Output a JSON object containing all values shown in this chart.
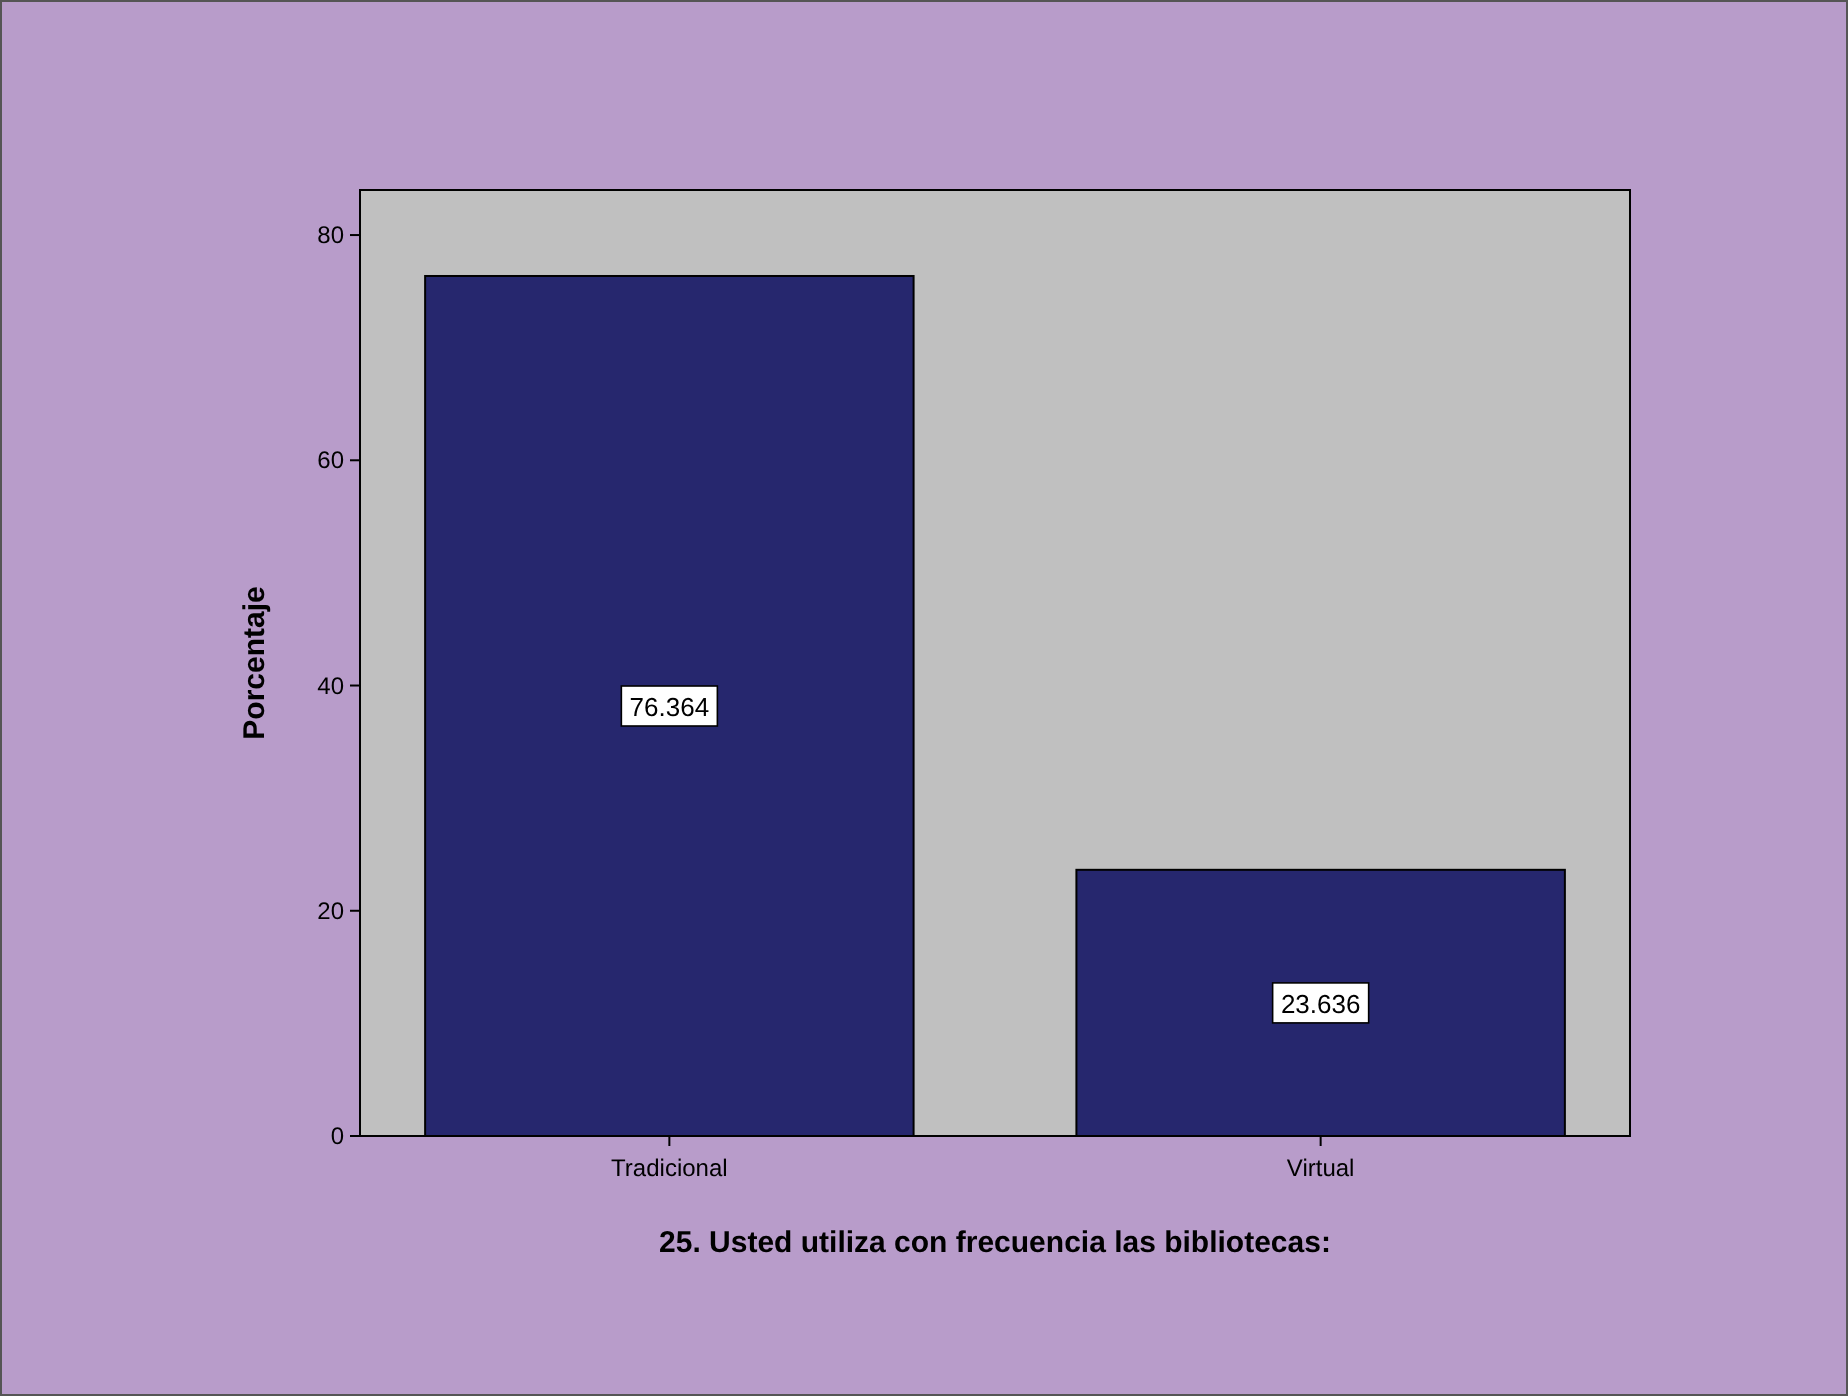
{
  "chart_data": {
    "type": "bar",
    "xlabel": "25. Usted utiliza con frecuencia las bibliotecas:",
    "ylabel": "Porcentaje",
    "categories": [
      "Tradicional",
      "Virtual"
    ],
    "values": [
      76.364,
      23.636
    ],
    "color": "#26276e",
    "ylim": [
      0,
      84
    ],
    "yticks": [
      0,
      20,
      40,
      60,
      80
    ],
    "data_labels": true
  }
}
